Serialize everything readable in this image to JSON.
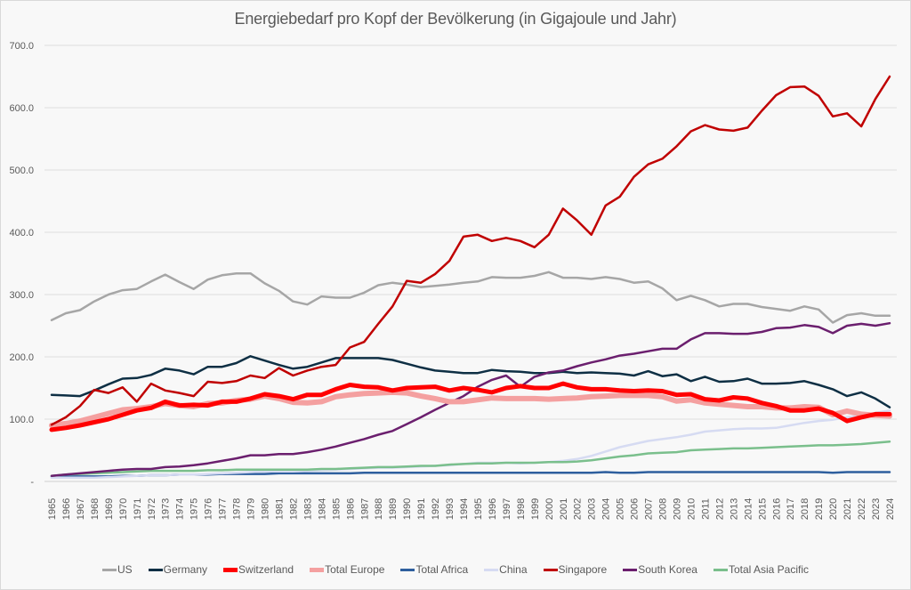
{
  "chart_data": {
    "type": "line",
    "title": "Energiebedarf pro Kopf der Bevölkerung (in Gigajoule und Jahr)",
    "xlabel": "",
    "ylabel": "",
    "ylim": [
      0,
      700
    ],
    "yticks": [
      "-",
      "100.0",
      "200.0",
      "300.0",
      "400.0",
      "500.0",
      "600.0",
      "700.0"
    ],
    "grid": true,
    "legend_position": "bottom",
    "x": [
      1965,
      1966,
      1967,
      1968,
      1969,
      1970,
      1971,
      1972,
      1973,
      1974,
      1975,
      1976,
      1977,
      1978,
      1979,
      1980,
      1981,
      1982,
      1983,
      1984,
      1985,
      1986,
      1987,
      1988,
      1989,
      1990,
      1991,
      1992,
      1993,
      1994,
      1995,
      1996,
      1997,
      1998,
      1999,
      2000,
      2001,
      2002,
      2003,
      2004,
      2005,
      2006,
      2007,
      2008,
      2009,
      2010,
      2011,
      2012,
      2013,
      2014,
      2015,
      2016,
      2017,
      2018,
      2019,
      2020,
      2021,
      2022,
      2023,
      2024
    ],
    "series": [
      {
        "name": "US",
        "color": "#a6a6a6",
        "values": [
          259,
          270,
          275,
          289,
          300,
          307,
          309,
          321,
          332,
          320,
          309,
          324,
          331,
          334,
          334,
          318,
          306,
          289,
          284,
          297,
          295,
          295,
          303,
          315,
          319,
          316,
          312,
          314,
          316,
          319,
          321,
          328,
          327,
          327,
          330,
          336,
          327,
          327,
          325,
          328,
          325,
          319,
          321,
          310,
          291,
          298,
          291,
          281,
          285,
          285,
          280,
          277,
          274,
          281,
          276,
          255,
          267,
          270,
          266,
          266
        ]
      },
      {
        "name": "Germany",
        "color": "#0e2f44",
        "values": [
          139,
          138,
          137,
          146,
          156,
          165,
          166,
          171,
          181,
          178,
          172,
          184,
          184,
          190,
          201,
          194,
          187,
          181,
          184,
          191,
          198,
          198,
          198,
          198,
          195,
          189,
          183,
          178,
          176,
          174,
          174,
          179,
          177,
          176,
          174,
          174,
          176,
          174,
          175,
          174,
          173,
          170,
          177,
          169,
          172,
          161,
          168,
          160,
          161,
          165,
          157,
          157,
          158,
          161,
          155,
          148,
          137,
          143,
          133,
          119
        ]
      },
      {
        "name": "Switzerland",
        "color": "#ff0000",
        "values": [
          83,
          86,
          90,
          95,
          100,
          107,
          114,
          118,
          128,
          122,
          123,
          122,
          128,
          128,
          133,
          140,
          137,
          132,
          139,
          139,
          148,
          155,
          152,
          151,
          146,
          150,
          151,
          152,
          146,
          150,
          147,
          143,
          150,
          153,
          150,
          150,
          157,
          151,
          148,
          148,
          146,
          145,
          146,
          145,
          139,
          140,
          132,
          130,
          135,
          133,
          126,
          121,
          114,
          114,
          117,
          110,
          97,
          103,
          108,
          108
        ]
      },
      {
        "name": "Total Europe",
        "color": "#f4a0a0",
        "values": [
          90,
          93,
          97,
          103,
          109,
          115,
          117,
          120,
          125,
          122,
          120,
          125,
          126,
          130,
          132,
          137,
          133,
          127,
          126,
          128,
          136,
          139,
          141,
          142,
          143,
          142,
          137,
          133,
          128,
          128,
          131,
          134,
          133,
          133,
          133,
          132,
          133,
          134,
          136,
          137,
          138,
          138,
          138,
          136,
          129,
          131,
          126,
          124,
          122,
          120,
          120,
          118,
          118,
          120,
          119,
          107,
          113,
          108,
          106,
          105
        ]
      },
      {
        "name": "Total Africa",
        "color": "#2e5f9e",
        "values": [
          8,
          8,
          8,
          8,
          8,
          9,
          9,
          10,
          10,
          11,
          11,
          11,
          12,
          12,
          12,
          12,
          13,
          13,
          13,
          13,
          13,
          13,
          14,
          14,
          14,
          14,
          14,
          14,
          14,
          14,
          14,
          14,
          14,
          14,
          14,
          14,
          14,
          14,
          14,
          15,
          14,
          14,
          15,
          15,
          15,
          15,
          15,
          15,
          15,
          15,
          15,
          15,
          15,
          15,
          15,
          14,
          15,
          15,
          15,
          15
        ]
      },
      {
        "name": "China",
        "color": "#d6dbf2",
        "values": [
          6,
          6,
          6,
          6,
          7,
          8,
          9,
          10,
          10,
          11,
          11,
          12,
          13,
          14,
          15,
          16,
          16,
          16,
          17,
          18,
          19,
          20,
          21,
          22,
          22,
          23,
          24,
          25,
          26,
          28,
          30,
          30,
          30,
          29,
          30,
          31,
          33,
          36,
          41,
          48,
          55,
          60,
          65,
          68,
          71,
          75,
          80,
          82,
          84,
          85,
          85,
          86,
          90,
          94,
          97,
          99,
          103,
          106,
          110,
          114
        ]
      },
      {
        "name": "Singapore",
        "color": "#c00000",
        "values": [
          91,
          103,
          121,
          147,
          142,
          151,
          128,
          157,
          146,
          142,
          137,
          160,
          158,
          161,
          170,
          166,
          182,
          170,
          178,
          184,
          187,
          215,
          224,
          253,
          281,
          322,
          319,
          333,
          354,
          393,
          396,
          386,
          391,
          386,
          376,
          396,
          438,
          419,
          396,
          443,
          457,
          489,
          509,
          518,
          538,
          562,
          572,
          565,
          563,
          568,
          595,
          620,
          633,
          634,
          619,
          586,
          591,
          570,
          614,
          650
        ]
      },
      {
        "name": "South Korea",
        "color": "#6b1f6e",
        "values": [
          9,
          11,
          13,
          15,
          17,
          19,
          20,
          20,
          23,
          24,
          26,
          29,
          33,
          37,
          42,
          42,
          44,
          44,
          47,
          51,
          56,
          62,
          68,
          75,
          81,
          92,
          103,
          115,
          126,
          137,
          152,
          163,
          170,
          152,
          168,
          175,
          178,
          185,
          191,
          196,
          202,
          205,
          209,
          213,
          213,
          228,
          238,
          238,
          237,
          237,
          240,
          246,
          247,
          251,
          248,
          238,
          250,
          253,
          250,
          254
        ]
      },
      {
        "name": "Total Asia Pacific",
        "color": "#7abf8c",
        "values": [
          9,
          11,
          12,
          13,
          14,
          15,
          16,
          17,
          17,
          17,
          17,
          18,
          18,
          19,
          19,
          19,
          19,
          19,
          19,
          20,
          20,
          21,
          22,
          23,
          23,
          24,
          25,
          25,
          27,
          28,
          29,
          29,
          30,
          30,
          30,
          31,
          31,
          32,
          34,
          37,
          40,
          42,
          45,
          46,
          47,
          50,
          51,
          52,
          53,
          53,
          54,
          55,
          56,
          57,
          58,
          58,
          59,
          60,
          62,
          64
        ]
      }
    ]
  }
}
